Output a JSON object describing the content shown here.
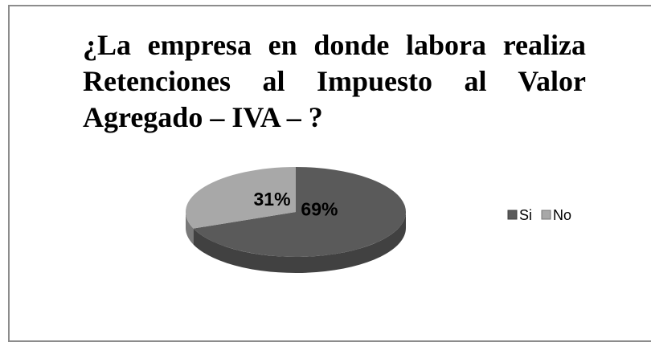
{
  "chart_data": {
    "type": "pie",
    "title": "¿La empresa en donde labora realiza Retenciones al Impuesto al Valor Agregado – IVA – ?",
    "categories": [
      "Si",
      "No"
    ],
    "values": [
      69,
      31
    ],
    "value_labels": [
      "69%",
      "31%"
    ],
    "colors": [
      "#5a5a5a",
      "#a8a8a8"
    ],
    "legend": "right"
  }
}
